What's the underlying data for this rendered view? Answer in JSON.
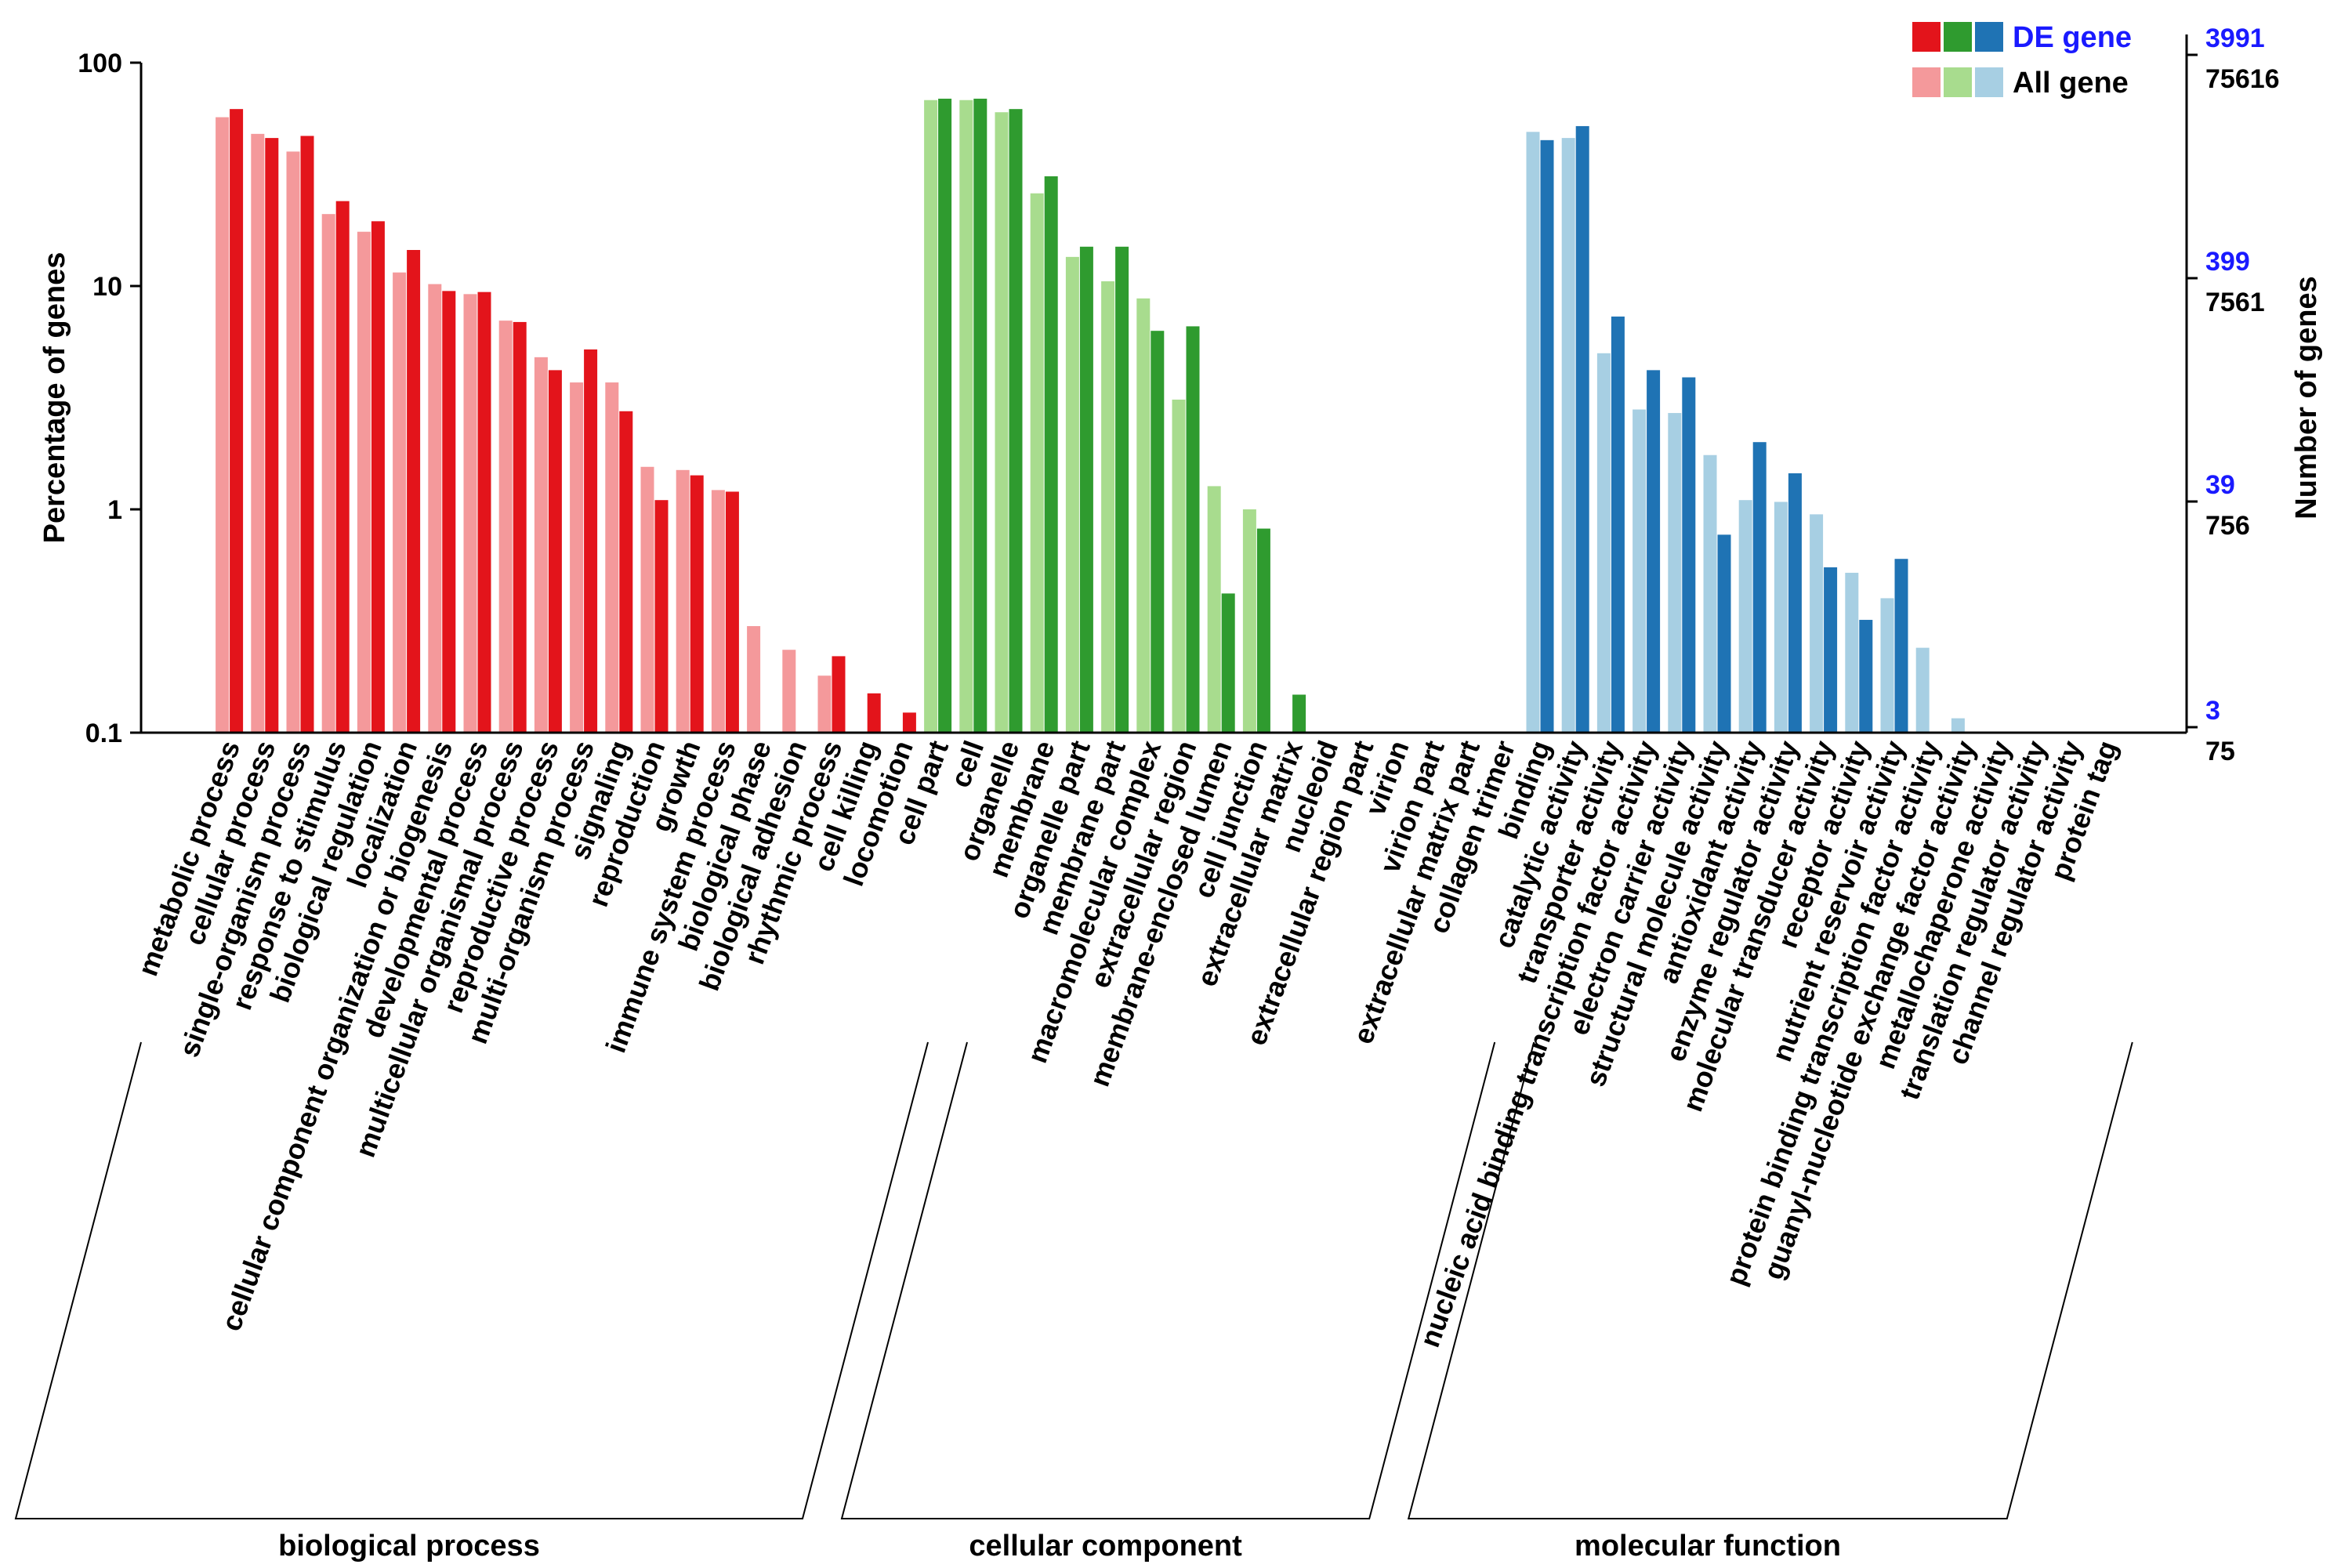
{
  "chart_data": {
    "type": "bar",
    "y_scale": "log",
    "ylim": [
      0.1,
      100
    ],
    "ylabel": "Percentage of genes",
    "y2label": "Number of genes",
    "y_ticks": [
      "100",
      "10",
      "1",
      "0.1"
    ],
    "right_axis": {
      "de_ticks": [
        "3991",
        "399",
        "39",
        "3"
      ],
      "all_ticks": [
        "75616",
        "7561",
        "756",
        "75"
      ]
    },
    "legend": {
      "de_label": "DE gene",
      "all_label": "All gene",
      "de_colors": [
        "#e3141b",
        "#2f9b2f",
        "#1f73b4"
      ],
      "all_colors": [
        "#f4999b",
        "#a8dc8e",
        "#a7cfe3"
      ]
    },
    "series": [
      {
        "name": "All gene"
      },
      {
        "name": "DE gene"
      }
    ],
    "groups": [
      {
        "label": "biological process",
        "de_color": "#e3141b",
        "all_color": "#f4999b",
        "categories": [
          {
            "name": "metabolic process",
            "all": 57,
            "de": 62
          },
          {
            "name": "cellular process",
            "all": 48,
            "de": 46
          },
          {
            "name": "single-organism process",
            "all": 40,
            "de": 47
          },
          {
            "name": "response to stimulus",
            "all": 21,
            "de": 24
          },
          {
            "name": "biological regulation",
            "all": 17.5,
            "de": 19.5
          },
          {
            "name": "localization",
            "all": 11.5,
            "de": 14.5
          },
          {
            "name": "cellular component organization or biogenesis",
            "all": 10.2,
            "de": 9.5
          },
          {
            "name": "developmental process",
            "all": 9.2,
            "de": 9.4
          },
          {
            "name": "multicellular organismal process",
            "all": 7.0,
            "de": 6.9
          },
          {
            "name": "reproductive process",
            "all": 4.8,
            "de": 4.2
          },
          {
            "name": "multi-organism process",
            "all": 3.7,
            "de": 5.2
          },
          {
            "name": "signaling",
            "all": 3.7,
            "de": 2.75
          },
          {
            "name": "reproduction",
            "all": 1.55,
            "de": 1.1
          },
          {
            "name": "growth",
            "all": 1.5,
            "de": 1.42
          },
          {
            "name": "immune system process",
            "all": 1.22,
            "de": 1.2
          },
          {
            "name": "biological phase",
            "all": 0.3,
            "de": null
          },
          {
            "name": "biological adhesion",
            "all": 0.235,
            "de": null
          },
          {
            "name": "rhythmic process",
            "all": 0.18,
            "de": 0.22
          },
          {
            "name": "cell killing",
            "all": null,
            "de": 0.15
          },
          {
            "name": "locomotion",
            "all": null,
            "de": 0.123
          }
        ]
      },
      {
        "label": "cellular component",
        "de_color": "#2f9b2f",
        "all_color": "#a8dc8e",
        "categories": [
          {
            "name": "cell part",
            "all": 68,
            "de": 69
          },
          {
            "name": "cell",
            "all": 68,
            "de": 69
          },
          {
            "name": "organelle",
            "all": 60,
            "de": 62
          },
          {
            "name": "membrane",
            "all": 26,
            "de": 31
          },
          {
            "name": "organelle part",
            "all": 13.5,
            "de": 15
          },
          {
            "name": "membrane part",
            "all": 10.5,
            "de": 15
          },
          {
            "name": "macromolecular complex",
            "all": 8.8,
            "de": 6.3
          },
          {
            "name": "extracellular region",
            "all": 3.1,
            "de": 6.6
          },
          {
            "name": "membrane-enclosed lumen",
            "all": 1.27,
            "de": 0.42
          },
          {
            "name": "cell junction",
            "all": 1.0,
            "de": 0.82
          },
          {
            "name": "extracellular matrix",
            "all": null,
            "de": 0.148
          },
          {
            "name": "nucleoid",
            "all": null,
            "de": null
          },
          {
            "name": "extracellular region part",
            "all": null,
            "de": null
          },
          {
            "name": "virion",
            "all": null,
            "de": null
          },
          {
            "name": "virion part",
            "all": null,
            "de": null
          },
          {
            "name": "extracellular matrix part",
            "all": null,
            "de": null
          }
        ]
      },
      {
        "label": "molecular function",
        "de_color": "#1f73b4",
        "all_color": "#a7cfe3",
        "categories": [
          {
            "name": "collagen trimer",
            "all": null,
            "de": null
          },
          {
            "name": "binding",
            "all": 49,
            "de": 45
          },
          {
            "name": "catalytic activity",
            "all": 46,
            "de": 52
          },
          {
            "name": "transporter activity",
            "all": 5.0,
            "de": 7.3
          },
          {
            "name": "nucleic acid binding transcription factor activity",
            "all": 2.8,
            "de": 4.2
          },
          {
            "name": "electron carrier activity",
            "all": 2.7,
            "de": 3.9
          },
          {
            "name": "structural molecule activity",
            "all": 1.75,
            "de": 0.77
          },
          {
            "name": "antioxidant activity",
            "all": 1.1,
            "de": 2.0
          },
          {
            "name": "enzyme regulator activity",
            "all": 1.08,
            "de": 1.45
          },
          {
            "name": "molecular transducer activity",
            "all": 0.95,
            "de": 0.55
          },
          {
            "name": "receptor activity",
            "all": 0.52,
            "de": 0.32
          },
          {
            "name": "nutrient reservoir activity",
            "all": 0.4,
            "de": 0.6
          },
          {
            "name": "protein binding transcription factor activity",
            "all": 0.24,
            "de": null
          },
          {
            "name": "guanyl-nucleotide exchange factor activity",
            "all": 0.116,
            "de": null
          },
          {
            "name": "metallochaperone activity",
            "all": null,
            "de": null
          },
          {
            "name": "translation regulator activity",
            "all": null,
            "de": null
          },
          {
            "name": "channel regulator activity",
            "all": null,
            "de": null
          },
          {
            "name": "protein tag",
            "all": null,
            "de": null
          }
        ]
      }
    ]
  }
}
